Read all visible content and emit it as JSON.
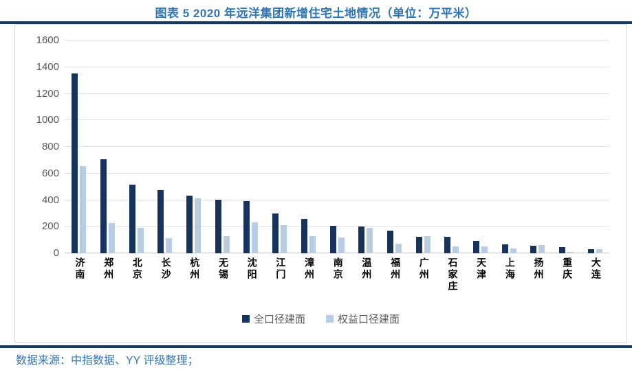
{
  "header": {
    "title": "图表 5 2020 年远洋集团新增住宅土地情况（单位：万平米）"
  },
  "footer": {
    "source": "数据来源：中指数据、YY 评级整理；"
  },
  "colors": {
    "accent_blue": "#2E75B6",
    "divider_navy": "#17375E",
    "dark_series": "#17325B",
    "light_series": "#B8CCE4",
    "axis_label_gray": "#595959",
    "gridline_gray": "#E2E2E2"
  },
  "chart_data": {
    "type": "bar",
    "title": "图表 5 2020 年远洋集团新增住宅土地情况（单位：万平米）",
    "categories": [
      "济南",
      "郑州",
      "北京",
      "长沙",
      "杭州",
      "无锡",
      "沈阳",
      "江门",
      "漳州",
      "南京",
      "温州",
      "福州",
      "广州",
      "石家庄",
      "天津",
      "上海",
      "扬州",
      "重庆",
      "大连"
    ],
    "series": [
      {
        "name": "全口径建面",
        "color": "#17325B",
        "values": [
          1350,
          707,
          515,
          477,
          434,
          401,
          395,
          300,
          256,
          205,
          200,
          172,
          125,
          125,
          93,
          68,
          55,
          45,
          30
        ]
      },
      {
        "name": "权益口径建面",
        "color": "#B8CCE4",
        "values": [
          655,
          228,
          190,
          112,
          414,
          130,
          230,
          214,
          127,
          120,
          190,
          73,
          128,
          52,
          50,
          37,
          60,
          13,
          32
        ]
      }
    ],
    "xlabel": "",
    "ylabel": "",
    "ylim": [
      0,
      1600
    ],
    "yticks": [
      0,
      200,
      400,
      600,
      800,
      1000,
      1200,
      1400,
      1600
    ],
    "grid": true,
    "legend_position": "bottom"
  }
}
